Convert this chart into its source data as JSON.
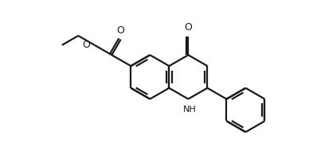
{
  "bg_color": "#ffffff",
  "line_color": "#1a1a1a",
  "line_width": 1.6,
  "figure_size": [
    3.88,
    1.94
  ],
  "dpi": 100,
  "xlim": [
    0,
    10
  ],
  "ylim": [
    0,
    5
  ],
  "s": 0.72
}
